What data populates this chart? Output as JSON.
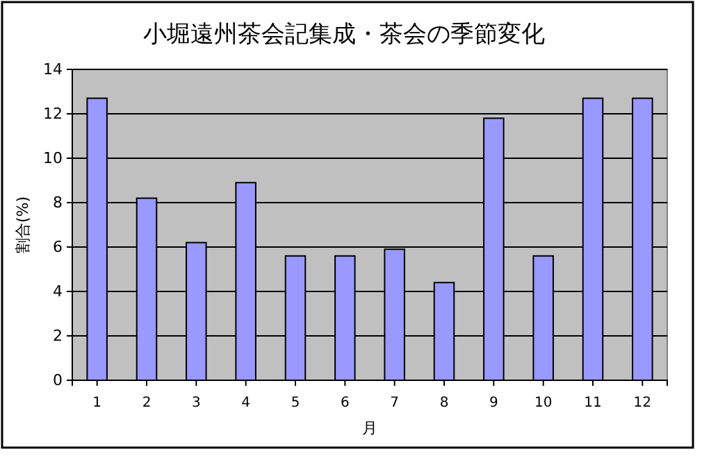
{
  "chart_data": {
    "type": "bar",
    "title": "小堀遠州茶会記集成・茶会の季節変化",
    "xlabel": "月",
    "ylabel": "割合(%)",
    "categories": [
      "1",
      "2",
      "3",
      "4",
      "5",
      "6",
      "7",
      "8",
      "9",
      "10",
      "11",
      "12"
    ],
    "values": [
      12.7,
      8.2,
      6.2,
      8.9,
      5.6,
      5.6,
      5.9,
      4.4,
      11.8,
      5.6,
      12.7,
      12.7
    ],
    "color": "#9999ff",
    "ylim": [
      0,
      14
    ],
    "yticks": [
      0,
      2,
      4,
      6,
      8,
      10,
      12,
      14
    ],
    "grid": "y"
  }
}
